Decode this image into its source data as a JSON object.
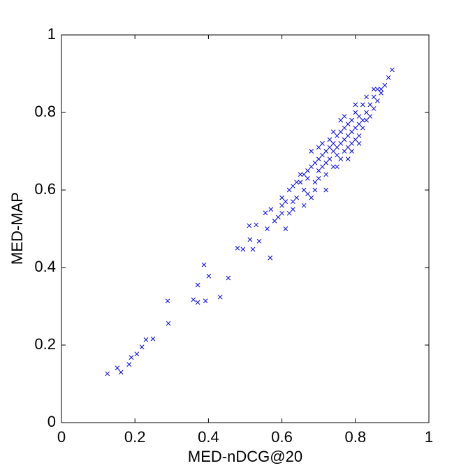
{
  "chart_data": {
    "type": "scatter",
    "x_label": "MED-nDCG@20",
    "y_label": "MED-MAP",
    "color": "#0000ff",
    "xlim": [
      0,
      1
    ],
    "ylim": [
      0,
      1
    ],
    "xticks": [
      0,
      0.2,
      0.4,
      0.6,
      0.8,
      1
    ],
    "yticks": [
      0,
      0.2,
      0.4,
      0.6,
      0.8,
      1
    ],
    "x": [
      0.125,
      0.152,
      0.162,
      0.184,
      0.19,
      0.205,
      0.219,
      0.23,
      0.249,
      0.289,
      0.291,
      0.359,
      0.371,
      0.371,
      0.388,
      0.392,
      0.401,
      0.432,
      0.454,
      0.479,
      0.494,
      0.513,
      0.511,
      0.521,
      0.53,
      0.538,
      0.568,
      0.555,
      0.56,
      0.57,
      0.58,
      0.59,
      0.6,
      0.6,
      0.61,
      0.61,
      0.62,
      0.62,
      0.63,
      0.63,
      0.64,
      0.64,
      0.65,
      0.66,
      0.66,
      0.67,
      0.67,
      0.68,
      0.68,
      0.69,
      0.69,
      0.7,
      0.7,
      0.7,
      0.71,
      0.71,
      0.72,
      0.72,
      0.72,
      0.73,
      0.73,
      0.73,
      0.74,
      0.74,
      0.74,
      0.75,
      0.75,
      0.75,
      0.76,
      0.76,
      0.76,
      0.77,
      0.77,
      0.77,
      0.78,
      0.78,
      0.78,
      0.79,
      0.79,
      0.79,
      0.8,
      0.8,
      0.8,
      0.81,
      0.81,
      0.81,
      0.82,
      0.82,
      0.82,
      0.83,
      0.83,
      0.84,
      0.84,
      0.85,
      0.85,
      0.86,
      0.86,
      0.87,
      0.87,
      0.88,
      0.89,
      0.9,
      0.72,
      0.75,
      0.78,
      0.81,
      0.69,
      0.66,
      0.63,
      0.68,
      0.71,
      0.74,
      0.77,
      0.8,
      0.79,
      0.76,
      0.83,
      0.85,
      0.6,
      0.65,
      0.67,
      0.7
    ],
    "y": [
      0.126,
      0.141,
      0.13,
      0.15,
      0.168,
      0.177,
      0.195,
      0.214,
      0.216,
      0.314,
      0.256,
      0.317,
      0.355,
      0.31,
      0.407,
      0.314,
      0.378,
      0.324,
      0.373,
      0.45,
      0.447,
      0.472,
      0.508,
      0.447,
      0.51,
      0.468,
      0.425,
      0.541,
      0.5,
      0.55,
      0.52,
      0.53,
      0.56,
      0.58,
      0.57,
      0.5,
      0.54,
      0.6,
      0.55,
      0.61,
      0.62,
      0.58,
      0.64,
      0.6,
      0.64,
      0.63,
      0.65,
      0.66,
      0.58,
      0.62,
      0.67,
      0.65,
      0.68,
      0.71,
      0.66,
      0.69,
      0.6,
      0.7,
      0.67,
      0.68,
      0.71,
      0.73,
      0.66,
      0.7,
      0.72,
      0.69,
      0.71,
      0.74,
      0.68,
      0.72,
      0.75,
      0.7,
      0.73,
      0.76,
      0.71,
      0.74,
      0.77,
      0.72,
      0.75,
      0.78,
      0.73,
      0.76,
      0.8,
      0.74,
      0.77,
      0.79,
      0.76,
      0.78,
      0.82,
      0.78,
      0.8,
      0.79,
      0.82,
      0.81,
      0.84,
      0.83,
      0.86,
      0.85,
      0.86,
      0.87,
      0.89,
      0.91,
      0.64,
      0.66,
      0.68,
      0.72,
      0.6,
      0.56,
      0.57,
      0.7,
      0.72,
      0.75,
      0.79,
      0.82,
      0.7,
      0.78,
      0.84,
      0.86,
      0.54,
      0.62,
      0.59,
      0.63
    ]
  }
}
